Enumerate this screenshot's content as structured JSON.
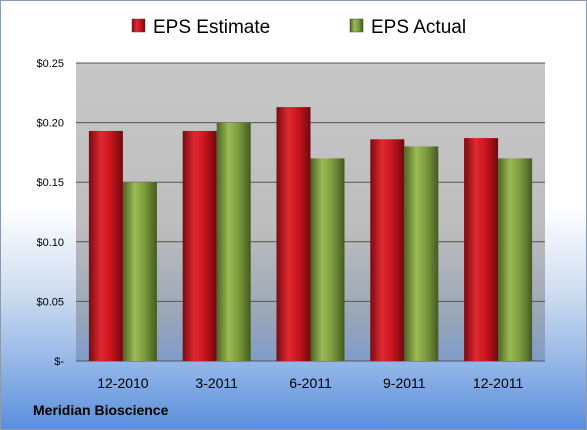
{
  "company": "Meridian Bioscience",
  "chart_data": {
    "type": "bar",
    "categories": [
      "12-2010",
      "3-2011",
      "6-2011",
      "9-2011",
      "12-2011"
    ],
    "series": [
      {
        "name": "EPS Estimate",
        "color": "#c8141e",
        "values": [
          0.193,
          0.193,
          0.213,
          0.186,
          0.187
        ]
      },
      {
        "name": "EPS Actual",
        "color": "#7a9a3c",
        "values": [
          0.15,
          0.2,
          0.17,
          0.18,
          0.17
        ]
      }
    ],
    "yticks": [
      {
        "value": 0,
        "label": "$-"
      },
      {
        "value": 0.05,
        "label": "$0.05"
      },
      {
        "value": 0.1,
        "label": "$0.10"
      },
      {
        "value": 0.15,
        "label": "$0.15"
      },
      {
        "value": 0.2,
        "label": "$0.20"
      },
      {
        "value": 0.25,
        "label": "$0.25"
      }
    ],
    "ylim": [
      0,
      0.25
    ],
    "grid": true,
    "legend_position": "top"
  }
}
